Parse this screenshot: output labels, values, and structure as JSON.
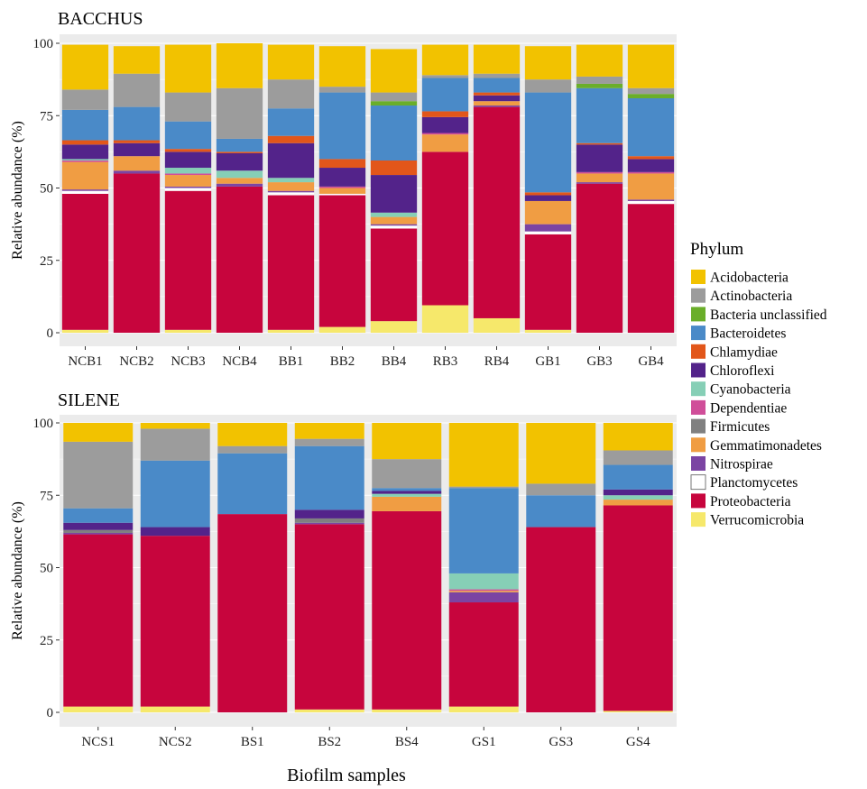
{
  "figure": {
    "xlabel": "Biofilm samples",
    "legend_title": "Phylum",
    "legend_position": "right"
  },
  "phyla": [
    {
      "name": "Acidobacteria",
      "color": "#F2C200"
    },
    {
      "name": "Actinobacteria",
      "color": "#9C9C9C"
    },
    {
      "name": "Bacteria unclassified",
      "color": "#6AAE2A"
    },
    {
      "name": "Bacteroidetes",
      "color": "#4A8AC8"
    },
    {
      "name": "Chlamydiae",
      "color": "#E2561A"
    },
    {
      "name": "Chloroflexi",
      "color": "#53238A"
    },
    {
      "name": "Cyanobacteria",
      "color": "#86CFB6"
    },
    {
      "name": "Dependentiae",
      "color": "#D04E99"
    },
    {
      "name": "Firmicutes",
      "color": "#808080"
    },
    {
      "name": "Gemmatimonadetes",
      "color": "#F09D43"
    },
    {
      "name": "Nitrospirae",
      "color": "#7B44A3"
    },
    {
      "name": "Planctomycetes",
      "color": "#FFFFFF"
    },
    {
      "name": "Proteobacteria",
      "color": "#C7053D"
    },
    {
      "name": "Verrucomicrobia",
      "color": "#F6E86B"
    }
  ],
  "chart_data": [
    {
      "type": "bar",
      "stacked": true,
      "title": "BACCHUS",
      "xlabel": "",
      "ylabel": "Relative abundance (%)",
      "ylim": [
        0,
        100
      ],
      "yticks": [
        0,
        25,
        50,
        75,
        100
      ],
      "grid": true,
      "categories": [
        "NCB1",
        "NCB2",
        "NCB3",
        "NCB4",
        "BB1",
        "BB2",
        "BB4",
        "RB3",
        "RB4",
        "GB1",
        "GB3",
        "GB4"
      ],
      "series": [
        {
          "name": "Verrucomicrobia",
          "values": [
            1,
            0,
            1,
            0,
            1,
            2,
            4,
            9.5,
            5,
            1,
            0,
            0
          ]
        },
        {
          "name": "Proteobacteria",
          "values": [
            47,
            55,
            48,
            50.5,
            46.5,
            45.5,
            32,
            53,
            73,
            33,
            51.5,
            44.5
          ]
        },
        {
          "name": "Planctomycetes",
          "values": [
            1,
            0,
            1,
            0,
            1,
            0.5,
            1,
            0,
            0,
            1,
            0,
            1
          ]
        },
        {
          "name": "Nitrospirae",
          "values": [
            0.5,
            1,
            0.5,
            1,
            0.5,
            0,
            0.5,
            0,
            0.5,
            2.5,
            0.5,
            0.5
          ]
        },
        {
          "name": "Gemmatimonadetes",
          "values": [
            9.5,
            5,
            4,
            2,
            3,
            2,
            2.5,
            6,
            1.5,
            8,
            3,
            9
          ]
        },
        {
          "name": "Firmicutes",
          "values": [
            0,
            0,
            0,
            0,
            0,
            0,
            0,
            0,
            0,
            0,
            0,
            0
          ]
        },
        {
          "name": "Dependentiae",
          "values": [
            0.5,
            0,
            0.5,
            0,
            0,
            0.5,
            0,
            0.5,
            0,
            0,
            0.5,
            0.5
          ]
        },
        {
          "name": "Cyanobacteria",
          "values": [
            0.5,
            0,
            2,
            2.5,
            1.5,
            0,
            1.5,
            0,
            0,
            0,
            0,
            0
          ]
        },
        {
          "name": "Chloroflexi",
          "values": [
            5,
            4.5,
            5.5,
            6,
            12,
            6.5,
            13,
            5.5,
            2,
            2,
            9.5,
            4.5
          ]
        },
        {
          "name": "Chlamydiae",
          "values": [
            1.5,
            1,
            1,
            0.5,
            2.5,
            3,
            5,
            2,
            1,
            1,
            0.5,
            1
          ]
        },
        {
          "name": "Bacteroidetes",
          "values": [
            10.5,
            11.5,
            9.5,
            4.5,
            9.5,
            23,
            19,
            11.5,
            5,
            34.5,
            19,
            20
          ]
        },
        {
          "name": "Bacteria unclassified",
          "values": [
            0,
            0,
            0,
            0,
            0,
            0,
            1.5,
            0,
            0,
            0,
            1.5,
            1.5
          ]
        },
        {
          "name": "Actinobacteria",
          "values": [
            7,
            11.5,
            10,
            17.5,
            10,
            2,
            3,
            1,
            1.5,
            4.5,
            2.5,
            2
          ]
        },
        {
          "name": "Acidobacteria",
          "values": [
            15.5,
            9.5,
            16.5,
            15.5,
            12,
            14,
            15,
            10.5,
            10,
            11.5,
            11,
            15
          ]
        }
      ]
    },
    {
      "type": "bar",
      "stacked": true,
      "title": "SILENE",
      "xlabel": "Biofilm samples",
      "ylabel": "Relative abundance (%)",
      "ylim": [
        0,
        100
      ],
      "yticks": [
        0,
        25,
        50,
        75,
        100
      ],
      "grid": true,
      "categories": [
        "NCS1",
        "NCS2",
        "BS1",
        "BS2",
        "BS4",
        "GS1",
        "GS3",
        "GS4"
      ],
      "series": [
        {
          "name": "Verrucomicrobia",
          "values": [
            2,
            2,
            0,
            1,
            1,
            2,
            0,
            0.5
          ]
        },
        {
          "name": "Proteobacteria",
          "values": [
            59.5,
            59,
            68.5,
            64,
            68.5,
            36,
            64,
            71
          ]
        },
        {
          "name": "Planctomycetes",
          "values": [
            0,
            0,
            0,
            0,
            0,
            0,
            0,
            0
          ]
        },
        {
          "name": "Nitrospirae",
          "values": [
            0.5,
            0,
            0,
            0.5,
            0,
            3.5,
            0,
            0
          ]
        },
        {
          "name": "Gemmatimonadetes",
          "values": [
            0,
            0,
            0,
            0,
            5,
            0.5,
            0,
            2
          ]
        },
        {
          "name": "Firmicutes",
          "values": [
            1,
            0,
            0,
            1.5,
            0,
            0,
            0,
            0
          ]
        },
        {
          "name": "Dependentiae",
          "values": [
            0,
            0,
            0,
            0,
            0,
            0.5,
            0,
            0
          ]
        },
        {
          "name": "Cyanobacteria",
          "values": [
            0,
            0,
            0,
            0,
            1,
            5.5,
            0,
            1.5
          ]
        },
        {
          "name": "Chloroflexi",
          "values": [
            2.5,
            3,
            0,
            3,
            1,
            0,
            0,
            2
          ]
        },
        {
          "name": "Chlamydiae",
          "values": [
            0,
            0,
            0,
            0,
            0,
            0,
            0,
            0
          ]
        },
        {
          "name": "Bacteroidetes",
          "values": [
            5,
            23,
            21,
            22,
            1,
            29.5,
            11,
            8.5
          ]
        },
        {
          "name": "Bacteria unclassified",
          "values": [
            0,
            0,
            0,
            0,
            0,
            0,
            0,
            0
          ]
        },
        {
          "name": "Actinobacteria",
          "values": [
            23,
            11,
            2.5,
            2.5,
            10,
            0.5,
            4,
            5
          ]
        },
        {
          "name": "Acidobacteria",
          "values": [
            6.5,
            2,
            8,
            5.5,
            12.5,
            22,
            21,
            9.5
          ]
        }
      ]
    }
  ]
}
